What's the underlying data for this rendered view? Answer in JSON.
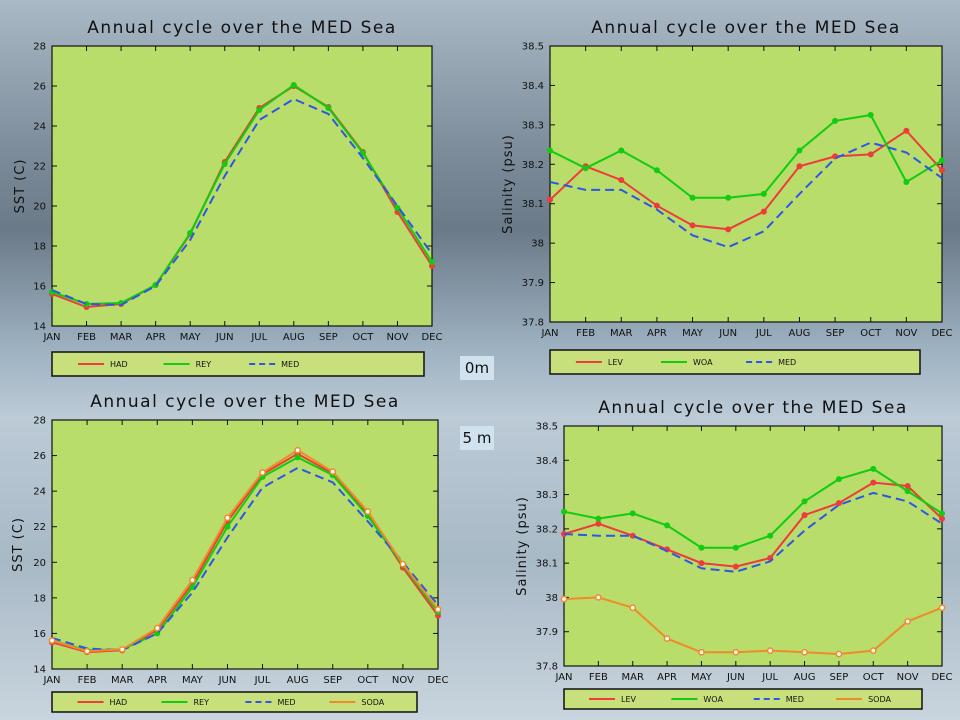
{
  "depth_labels": {
    "top": "0m",
    "bottom": "5 m"
  },
  "chart_data": [
    {
      "type": "line",
      "title": "Annual cycle over the MED Sea",
      "ylabel": "SST (C)",
      "ylim": [
        14,
        28
      ],
      "yticks": [
        14,
        16,
        18,
        20,
        22,
        24,
        26,
        28
      ],
      "categories": [
        "JAN",
        "FEB",
        "MAR",
        "APR",
        "MAY",
        "JUN",
        "JUL",
        "AUG",
        "SEP",
        "OCT",
        "NOV",
        "DEC"
      ],
      "series": [
        {
          "name": "HAD",
          "color": "#ee3b3b",
          "style": "solid",
          "values": [
            15.6,
            14.95,
            15.1,
            16.05,
            18.6,
            22.2,
            24.9,
            26.0,
            24.95,
            22.7,
            19.7,
            17.0
          ]
        },
        {
          "name": "REY",
          "color": "#11cc11",
          "style": "solid",
          "values": [
            15.7,
            15.1,
            15.15,
            16.05,
            18.65,
            22.1,
            24.8,
            26.05,
            24.9,
            22.65,
            19.9,
            17.2
          ]
        },
        {
          "name": "MED",
          "color": "#2f55e6",
          "style": "dashed",
          "values": [
            15.8,
            15.1,
            15.05,
            16.0,
            18.3,
            21.5,
            24.3,
            25.35,
            24.6,
            22.4,
            20.0,
            17.6
          ]
        }
      ]
    },
    {
      "type": "line",
      "title": "Annual cycle over the MED Sea",
      "ylabel": "Salinity (psu)",
      "ylim": [
        37.8,
        38.5
      ],
      "yticks": [
        37.8,
        37.9,
        38,
        38.1,
        38.2,
        38.3,
        38.4,
        38.5
      ],
      "categories": [
        "JAN",
        "FEB",
        "MAR",
        "APR",
        "MAY",
        "JUN",
        "JUL",
        "AUG",
        "SEP",
        "OCT",
        "NOV",
        "DEC"
      ],
      "series": [
        {
          "name": "LEV",
          "color": "#ee3b3b",
          "style": "solid",
          "values": [
            38.11,
            38.195,
            38.16,
            38.095,
            38.045,
            38.035,
            38.08,
            38.195,
            38.22,
            38.225,
            38.285,
            38.185
          ]
        },
        {
          "name": "WOA",
          "color": "#11cc11",
          "style": "solid",
          "values": [
            38.235,
            38.19,
            38.235,
            38.185,
            38.115,
            38.115,
            38.125,
            38.235,
            38.31,
            38.325,
            38.155,
            38.21
          ]
        },
        {
          "name": "MED",
          "color": "#2f55e6",
          "style": "dashed",
          "values": [
            38.155,
            38.135,
            38.135,
            38.085,
            38.02,
            37.99,
            38.03,
            38.125,
            38.215,
            38.255,
            38.23,
            38.165
          ]
        }
      ]
    },
    {
      "type": "line",
      "title": "Annual cycle over the MED Sea",
      "ylabel": "SST (C)",
      "ylim": [
        14,
        28
      ],
      "yticks": [
        14,
        16,
        18,
        20,
        22,
        24,
        26,
        28
      ],
      "categories": [
        "JAN",
        "FEB",
        "MAR",
        "APR",
        "MAY",
        "JUN",
        "JUL",
        "AUG",
        "SEP",
        "OCT",
        "NOV",
        "DEC"
      ],
      "series": [
        {
          "name": "HAD",
          "color": "#ee3b3b",
          "style": "solid",
          "values": [
            15.5,
            14.95,
            15.05,
            16.2,
            18.8,
            22.3,
            24.95,
            26.1,
            25.0,
            22.75,
            19.7,
            17.0
          ]
        },
        {
          "name": "REY",
          "color": "#11cc11",
          "style": "solid",
          "values": [
            15.6,
            15.05,
            15.1,
            16.0,
            18.6,
            22.0,
            24.8,
            25.9,
            24.9,
            22.6,
            19.85,
            17.2
          ]
        },
        {
          "name": "MED",
          "color": "#2f55e6",
          "style": "dashed",
          "values": [
            15.75,
            15.15,
            15.05,
            16.0,
            18.3,
            21.4,
            24.2,
            25.3,
            24.5,
            22.3,
            20.0,
            17.6
          ]
        },
        {
          "name": "SODA",
          "color": "#f08a2c",
          "style": "solid",
          "values": [
            15.6,
            15.0,
            15.1,
            16.3,
            19.0,
            22.5,
            25.05,
            26.3,
            25.1,
            22.85,
            19.9,
            17.35
          ]
        }
      ]
    },
    {
      "type": "line",
      "title": "Annual cycle over the MED Sea",
      "ylabel": "Salinity (psu)",
      "ylim": [
        37.8,
        38.5
      ],
      "yticks": [
        37.8,
        37.9,
        38,
        38.1,
        38.2,
        38.3,
        38.4,
        38.5
      ],
      "categories": [
        "JAN",
        "FEB",
        "MAR",
        "APR",
        "MAY",
        "JUN",
        "JUL",
        "AUG",
        "SEP",
        "OCT",
        "NOV",
        "DEC"
      ],
      "series": [
        {
          "name": "LEV",
          "color": "#ee3b3b",
          "style": "solid",
          "values": [
            38.185,
            38.215,
            38.18,
            38.14,
            38.1,
            38.09,
            38.115,
            38.24,
            38.275,
            38.335,
            38.325,
            38.23
          ]
        },
        {
          "name": "WOA",
          "color": "#11cc11",
          "style": "solid",
          "values": [
            38.25,
            38.23,
            38.245,
            38.21,
            38.145,
            38.145,
            38.18,
            38.28,
            38.345,
            38.375,
            38.31,
            38.245
          ]
        },
        {
          "name": "MED",
          "color": "#2f55e6",
          "style": "dashed",
          "values": [
            38.185,
            38.18,
            38.18,
            38.135,
            38.085,
            38.075,
            38.105,
            38.195,
            38.27,
            38.305,
            38.28,
            38.215
          ]
        },
        {
          "name": "SODA",
          "color": "#f08a2c",
          "style": "solid",
          "values": [
            37.995,
            38.0,
            37.97,
            37.88,
            37.84,
            37.84,
            37.845,
            37.84,
            37.835,
            37.845,
            37.93,
            37.97
          ]
        }
      ]
    }
  ]
}
